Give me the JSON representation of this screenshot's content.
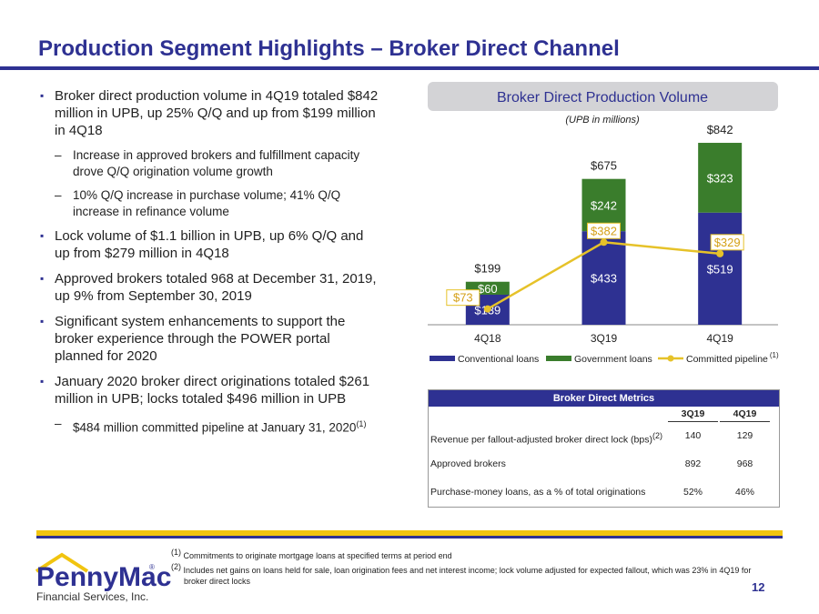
{
  "header": {
    "title": "Production Segment Highlights – Broker Direct Channel"
  },
  "bullets": [
    {
      "text": "Broker direct production volume in 4Q19 totaled $842 million in UPB, up 25% Q/Q and up from $199 million in 4Q18",
      "sub": [
        {
          "text": "Increase in approved brokers and fulfillment capacity drove Q/Q origination volume growth"
        },
        {
          "text": "10% Q/Q increase in purchase volume; 41% Q/Q increase in refinance volume"
        }
      ]
    },
    {
      "text": "Lock volume of $1.1 billion in UPB, up 6% Q/Q and up from $279 million in 4Q18"
    },
    {
      "text": "Approved brokers totaled 968 at December 31, 2019, up 9% from September 30, 2019"
    },
    {
      "text": "Significant system enhancements to support the broker experience through the POWER portal planned for 2020"
    },
    {
      "text": "January 2020 broker direct originations totaled $261 million in UPB; locks totaled $496 million in UPB",
      "sub": [
        {
          "text": "$484 million committed pipeline at January 31, 2020",
          "note": "(1)"
        }
      ]
    }
  ],
  "chart_data": {
    "type": "bar",
    "stacked": true,
    "title": "Broker Direct Production Volume",
    "subtitle": "(UPB in millions)",
    "categories": [
      "4Q18",
      "3Q19",
      "4Q19"
    ],
    "series": [
      {
        "name": "Conventional loans",
        "color": "#2e3192",
        "values": [
          139,
          433,
          519
        ],
        "value_labels": [
          "$139",
          "$433",
          "$519"
        ]
      },
      {
        "name": "Government loans",
        "color": "#3a7d2c",
        "values": [
          60,
          242,
          323
        ],
        "value_labels": [
          "$60",
          "$242",
          "$323"
        ]
      },
      {
        "name": "Committed pipeline",
        "type": "line",
        "color": "#e6c229",
        "values": [
          73,
          382,
          329
        ],
        "value_labels": [
          "$73",
          "$382",
          "$329"
        ],
        "name_note": "(1)"
      }
    ],
    "totals": {
      "values": [
        199,
        675,
        842
      ],
      "value_labels": [
        "$199",
        "$675",
        "$842"
      ]
    }
  },
  "table": {
    "title": "Broker Direct Metrics",
    "columns": [
      "3Q19",
      "4Q19"
    ],
    "rows": [
      {
        "label": "Revenue per fallout-adjusted broker direct lock (bps)",
        "note": "(2)",
        "values": [
          "140",
          "129"
        ]
      },
      {
        "label": "Approved brokers",
        "values": [
          "892",
          "968"
        ]
      },
      {
        "label": "Purchase-money loans, as a % of total originations",
        "values": [
          "52%",
          "46%"
        ]
      }
    ]
  },
  "footnotes": [
    {
      "mark": "(1)",
      "text": "Commitments to originate mortgage loans at specified terms at period end"
    },
    {
      "mark": "(2)",
      "text": "Includes net gains on loans held for sale, loan origination fees and net interest income; lock volume adjusted for expected fallout, which was 23% in 4Q19 for broker direct locks"
    }
  ],
  "logo": {
    "name": "PennyMac",
    "registered": "®",
    "tagline": "Financial Services, Inc."
  },
  "page_number": "12"
}
